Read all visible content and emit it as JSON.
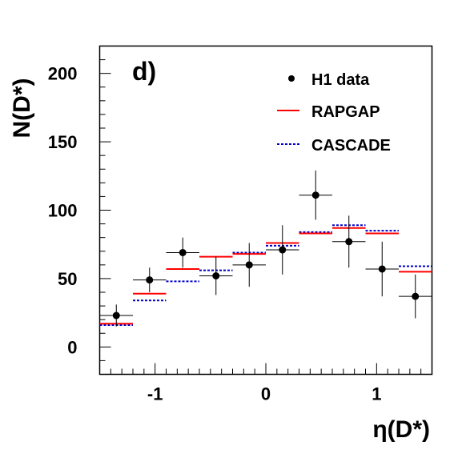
{
  "chart_data": {
    "type": "scatter",
    "panel_label": "d)",
    "xlabel": "η(D*)",
    "ylabel": "N(D*)",
    "xlim": [
      -1.5,
      1.5
    ],
    "ylim": [
      -20,
      220
    ],
    "x_ticks": [
      "-1",
      "0",
      "1"
    ],
    "y_ticks": [
      "0",
      "50",
      "100",
      "150",
      "200"
    ],
    "legend": {
      "placement": "top-right",
      "entries": [
        "H1 data",
        "RAPGAP",
        "CASCADE"
      ]
    },
    "bin_edges": [
      -1.5,
      -1.2,
      -0.9,
      -0.6,
      -0.3,
      0.0,
      0.3,
      0.6,
      0.9,
      1.2,
      1.5
    ],
    "series": [
      {
        "name": "H1 data",
        "style": "points",
        "color": "#000000",
        "x": [
          -1.35,
          -1.05,
          -0.75,
          -0.45,
          -0.15,
          0.15,
          0.45,
          0.75,
          1.05,
          1.35
        ],
        "y": [
          23,
          49,
          69,
          52,
          60,
          71,
          111,
          77,
          57,
          37
        ],
        "y_err": [
          8,
          9,
          11,
          14,
          16,
          18,
          18,
          19,
          20,
          16
        ]
      },
      {
        "name": "RAPGAP",
        "style": "histogram",
        "color": "#ff0000",
        "values": [
          17,
          39,
          57,
          66,
          68,
          76,
          83,
          87,
          83,
          55
        ]
      },
      {
        "name": "CASCADE",
        "style": "histogram-dashed",
        "color": "#0000cc",
        "values": [
          16,
          34,
          48,
          56,
          69,
          74,
          84,
          89,
          85,
          59
        ]
      }
    ]
  }
}
